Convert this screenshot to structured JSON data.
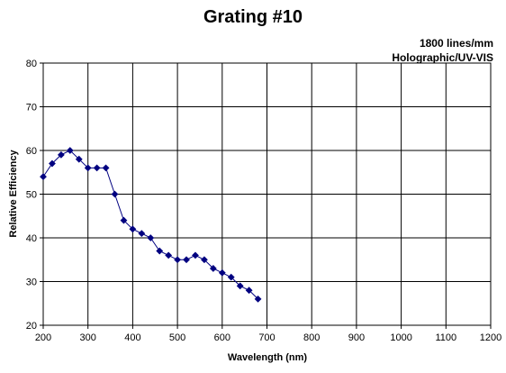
{
  "chart_data": {
    "type": "line",
    "title": "Grating #10",
    "subtitle": [
      "1800 lines/mm",
      "Holographic/UV-VIS"
    ],
    "xlabel": "Wavelength (nm)",
    "ylabel": "Relative Efficiency",
    "xlim": [
      200,
      1200
    ],
    "ylim": [
      20,
      80
    ],
    "xticks": [
      200,
      300,
      400,
      500,
      600,
      700,
      800,
      900,
      1000,
      1100,
      1200
    ],
    "yticks": [
      20,
      30,
      40,
      50,
      60,
      70,
      80
    ],
    "grid": true,
    "marker_color": "#000080",
    "series": [
      {
        "x": [
          200,
          220,
          240,
          260,
          280,
          300,
          320,
          340,
          360,
          380,
          400,
          420,
          440,
          460,
          480,
          500,
          520,
          540,
          560,
          580,
          600,
          620,
          640,
          660,
          680
        ],
        "y": [
          54,
          57,
          59,
          60,
          58,
          56,
          56,
          56,
          50,
          44,
          42,
          41,
          40,
          37,
          36,
          35,
          35,
          36,
          35,
          33,
          32,
          31,
          29,
          28,
          26
        ]
      }
    ]
  }
}
